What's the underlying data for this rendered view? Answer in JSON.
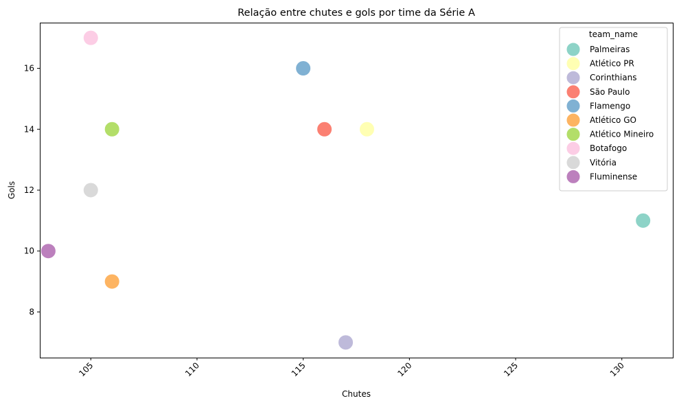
{
  "chart_data": {
    "type": "scatter",
    "title": "Relação entre chutes e gols por time da Série A",
    "xlabel": "Chutes",
    "ylabel": "Gols",
    "xlim": [
      102.6,
      132.4
    ],
    "ylim": [
      6.5,
      17.5
    ],
    "xticks": [
      105,
      110,
      115,
      120,
      125,
      130
    ],
    "yticks": [
      8,
      10,
      12,
      14,
      16
    ],
    "grid": false,
    "legend": {
      "title": "team_name",
      "placement": "top-right"
    },
    "series": [
      {
        "name": "Palmeiras",
        "color": "#8dd3c7",
        "x": 131,
        "y": 11
      },
      {
        "name": "Atlético PR",
        "color": "#ffffb3",
        "x": 118,
        "y": 14
      },
      {
        "name": "Corinthians",
        "color": "#bebada",
        "x": 117,
        "y": 7
      },
      {
        "name": "São Paulo",
        "color": "#fb8072",
        "x": 116,
        "y": 14
      },
      {
        "name": "Flamengo",
        "color": "#80b1d3",
        "x": 115,
        "y": 16
      },
      {
        "name": "Atlético GO",
        "color": "#fdb462",
        "x": 106,
        "y": 9
      },
      {
        "name": "Atlético Mineiro",
        "color": "#b3de69",
        "x": 106,
        "y": 14
      },
      {
        "name": "Botafogo",
        "color": "#fccde5",
        "x": 105,
        "y": 17
      },
      {
        "name": "Vitória",
        "color": "#d9d9d9",
        "x": 105,
        "y": 12
      },
      {
        "name": "Fluminense",
        "color": "#bc80bd",
        "x": 103,
        "y": 10
      }
    ]
  }
}
